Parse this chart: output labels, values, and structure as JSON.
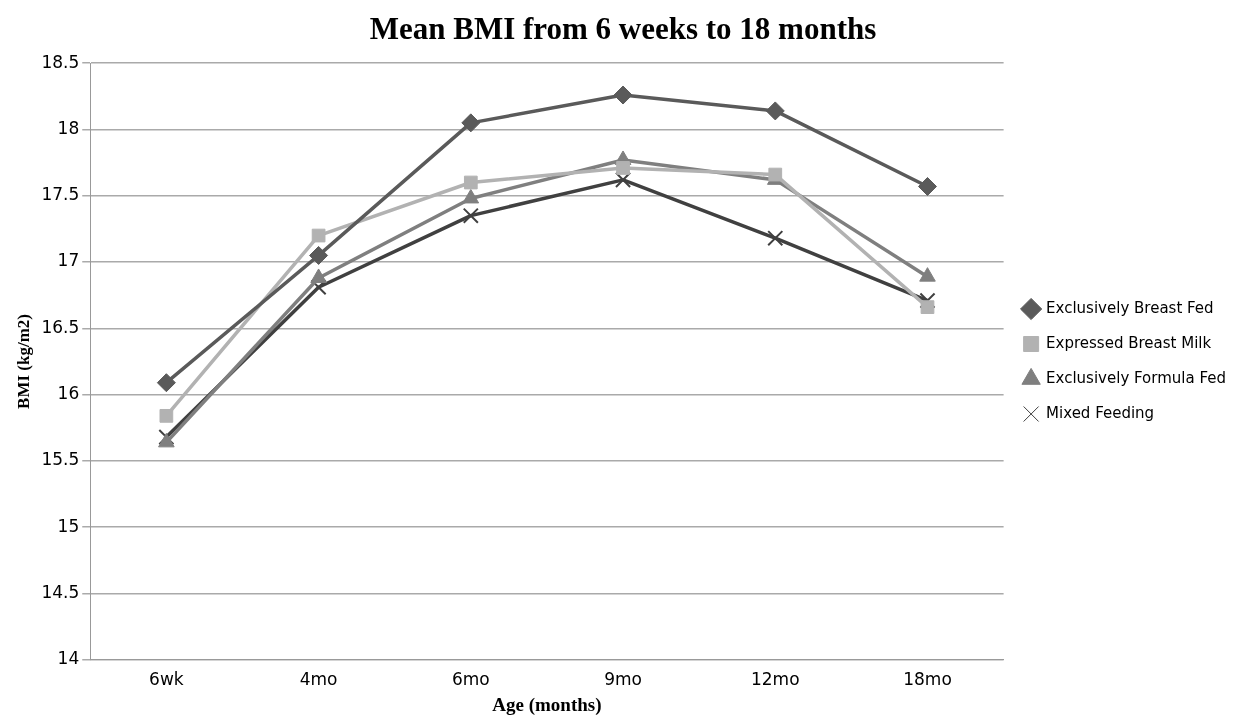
{
  "chart_data": {
    "type": "line",
    "title": "Mean BMI from 6 weeks to 18 months",
    "xlabel": "Age (months)",
    "ylabel": "BMI (kg/m2)",
    "categories": [
      "6wk",
      "4mo",
      "6mo",
      "9mo",
      "12mo",
      "18mo"
    ],
    "ylim": [
      14,
      18.5
    ],
    "yticks": [
      14,
      14.5,
      15,
      15.5,
      16,
      16.5,
      17,
      17.5,
      18,
      18.5
    ],
    "grid": "y",
    "legend": "right",
    "line_style": "solid",
    "series": [
      {
        "name": "Exclusively Breast Fed",
        "color": "#5a5a5a",
        "marker": "diamond",
        "values": [
          16.09,
          17.05,
          18.05,
          18.26,
          18.14,
          17.57
        ]
      },
      {
        "name": "Expressed Breast Milk",
        "color": "#b2b2b2",
        "marker": "square",
        "values": [
          15.84,
          17.2,
          17.6,
          17.71,
          17.66,
          16.66
        ]
      },
      {
        "name": "Exclusively Formula Fed",
        "color": "#7f7f7f",
        "marker": "triangle",
        "values": [
          15.64,
          16.88,
          17.48,
          17.77,
          17.62,
          16.89
        ]
      },
      {
        "name": "Mixed Feeding",
        "color": "#404040",
        "marker": "cross",
        "values": [
          15.68,
          16.81,
          17.35,
          17.62,
          17.18,
          16.71
        ]
      }
    ]
  }
}
